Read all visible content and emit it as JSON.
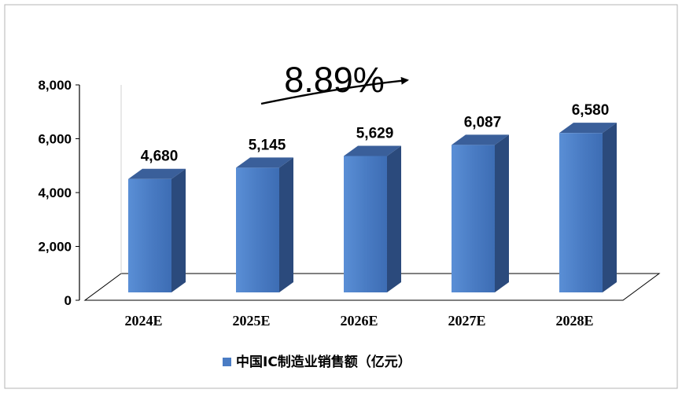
{
  "chart_data": {
    "type": "bar",
    "categories": [
      "2024E",
      "2025E",
      "2026E",
      "2027E",
      "2028E"
    ],
    "series": [
      {
        "name": "中国IC制造业销售额（亿元）",
        "values": [
          4680,
          5145,
          5629,
          6087,
          6580
        ]
      }
    ],
    "value_labels": [
      "4,680",
      "5,145",
      "5,629",
      "6,087",
      "6,580"
    ],
    "ylim": [
      0,
      8000
    ],
    "yticks": [
      0,
      2000,
      4000,
      6000,
      8000
    ],
    "ytick_labels": [
      "0",
      "2,000",
      "4,000",
      "6,000",
      "8,000"
    ],
    "annotation": "8.89%",
    "legend_position": "bottom",
    "grid": false,
    "colors": {
      "bar_front": "#4a7cc4",
      "bar_side": "#2b4a7c",
      "bar_top": "#3a5f9a",
      "floor": "#ffffff"
    }
  }
}
